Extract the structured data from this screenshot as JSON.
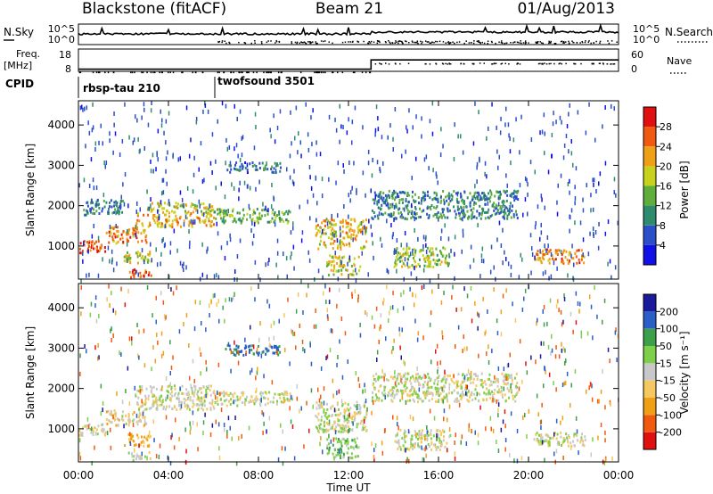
{
  "header": {
    "station": "Blackstone (fitACF)",
    "beam": "Beam 21",
    "date": "01/Aug/2013"
  },
  "params": {
    "nsky_label": "N.Sky",
    "nsky_ticks": [
      "10^5",
      "10^0"
    ],
    "nsearch_label": "N.Search",
    "nsearch_ticks": [
      "10^5",
      "10^0"
    ],
    "freq_label": "Freq.",
    "freq_unit": "[MHz]",
    "freq_ticks": [
      "18",
      "8"
    ],
    "nave_label": "Nave",
    "nave_ticks": [
      "60",
      "0"
    ],
    "cpid_label": "CPID",
    "cpid_segments": [
      {
        "name": "rbsp-tau 210",
        "start_hour": 0
      },
      {
        "name": "twofsound 3501",
        "start_hour": 6
      }
    ]
  },
  "chart_data": [
    {
      "type": "heatmap",
      "title": "",
      "xlabel": "Time UT",
      "ylabel": "Slant Range [km]",
      "xlim": [
        0,
        24
      ],
      "ylim": [
        180,
        4600
      ],
      "x_ticks": [
        "00:00",
        "04:00",
        "08:00",
        "12:00",
        "16:00",
        "20:00",
        "00:00"
      ],
      "y_ticks": [
        1000,
        2000,
        3000,
        4000
      ],
      "colorbar": {
        "label": "Power [dB]",
        "ticks": [
          4,
          8,
          12,
          16,
          20,
          24,
          28
        ],
        "colors": [
          "#1010e6",
          "#2a4fc8",
          "#2e8b6e",
          "#5fae3c",
          "#c8d21e",
          "#f0a016",
          "#f05a10",
          "#e01010"
        ]
      },
      "regions": [
        {
          "t0": 0.0,
          "t1": 1.2,
          "r0": 850,
          "r1": 1150,
          "value": 27
        },
        {
          "t0": 1.2,
          "t1": 3.0,
          "r0": 1100,
          "r1": 1500,
          "value": 24
        },
        {
          "t0": 2.5,
          "t1": 6.0,
          "r0": 1500,
          "r1": 1850,
          "value": 22
        },
        {
          "t0": 3.0,
          "t1": 6.0,
          "r0": 1850,
          "r1": 2100,
          "value": 18
        },
        {
          "t0": 0.2,
          "t1": 2.0,
          "r0": 1800,
          "r1": 2200,
          "value": 10
        },
        {
          "t0": 2.2,
          "t1": 3.2,
          "r0": 250,
          "r1": 450,
          "value": 26
        },
        {
          "t0": 2.0,
          "t1": 3.2,
          "r0": 600,
          "r1": 900,
          "value": 18
        },
        {
          "t0": 6.0,
          "t1": 9.5,
          "r0": 1600,
          "r1": 1950,
          "value": 14
        },
        {
          "t0": 6.5,
          "t1": 9.0,
          "r0": 2850,
          "r1": 3100,
          "value": 8
        },
        {
          "t0": 10.5,
          "t1": 12.8,
          "r0": 950,
          "r1": 1700,
          "value": 20
        },
        {
          "t0": 11.0,
          "t1": 12.5,
          "r0": 300,
          "r1": 800,
          "value": 18
        },
        {
          "t0": 13.0,
          "t1": 19.5,
          "r0": 1700,
          "r1": 2400,
          "value": 10
        },
        {
          "t0": 14.0,
          "t1": 16.5,
          "r0": 500,
          "r1": 1000,
          "value": 16
        },
        {
          "t0": 20.2,
          "t1": 22.5,
          "r0": 600,
          "r1": 950,
          "value": 24
        }
      ]
    },
    {
      "type": "heatmap",
      "title": "",
      "xlabel": "Time UT",
      "ylabel": "Slant Range [km]",
      "xlim": [
        0,
        24
      ],
      "ylim": [
        180,
        4600
      ],
      "x_ticks": [
        "00:00",
        "04:00",
        "08:00",
        "12:00",
        "16:00",
        "20:00",
        "00:00"
      ],
      "y_ticks": [
        1000,
        2000,
        3000,
        4000
      ],
      "colorbar": {
        "label": "Velocity [m s⁻¹]",
        "ticks": [
          -200,
          -100,
          -50,
          -15,
          15,
          50,
          100,
          200
        ],
        "colors": [
          "#e01010",
          "#f05a10",
          "#f0a016",
          "#f5c860",
          "#c8c8c8",
          "#7ed04a",
          "#3ca04a",
          "#2a5fc8",
          "#1a1a9a"
        ]
      },
      "regions": [
        {
          "t0": 0.0,
          "t1": 1.2,
          "r0": 850,
          "r1": 1150,
          "value": 0
        },
        {
          "t0": 1.2,
          "t1": 3.0,
          "r0": 1100,
          "r1": 1500,
          "value": -20
        },
        {
          "t0": 2.5,
          "t1": 6.0,
          "r0": 1500,
          "r1": 2100,
          "value": 0
        },
        {
          "t0": 2.2,
          "t1": 3.2,
          "r0": 250,
          "r1": 450,
          "value": 0
        },
        {
          "t0": 2.0,
          "t1": 3.2,
          "r0": 600,
          "r1": 900,
          "value": -60
        },
        {
          "t0": 6.0,
          "t1": 9.5,
          "r0": 1600,
          "r1": 1950,
          "value": 0
        },
        {
          "t0": 6.5,
          "t1": 9.0,
          "r0": 2850,
          "r1": 3100,
          "value": 120
        },
        {
          "t0": 10.5,
          "t1": 12.8,
          "r0": 950,
          "r1": 1700,
          "value": 0
        },
        {
          "t0": 11.0,
          "t1": 12.5,
          "r0": 300,
          "r1": 800,
          "value": 40
        },
        {
          "t0": 13.0,
          "t1": 19.5,
          "r0": 1700,
          "r1": 2400,
          "value": 0
        },
        {
          "t0": 14.0,
          "t1": 16.5,
          "r0": 500,
          "r1": 1000,
          "value": 0
        },
        {
          "t0": 20.2,
          "t1": 22.5,
          "r0": 600,
          "r1": 950,
          "value": 0
        }
      ]
    }
  ]
}
